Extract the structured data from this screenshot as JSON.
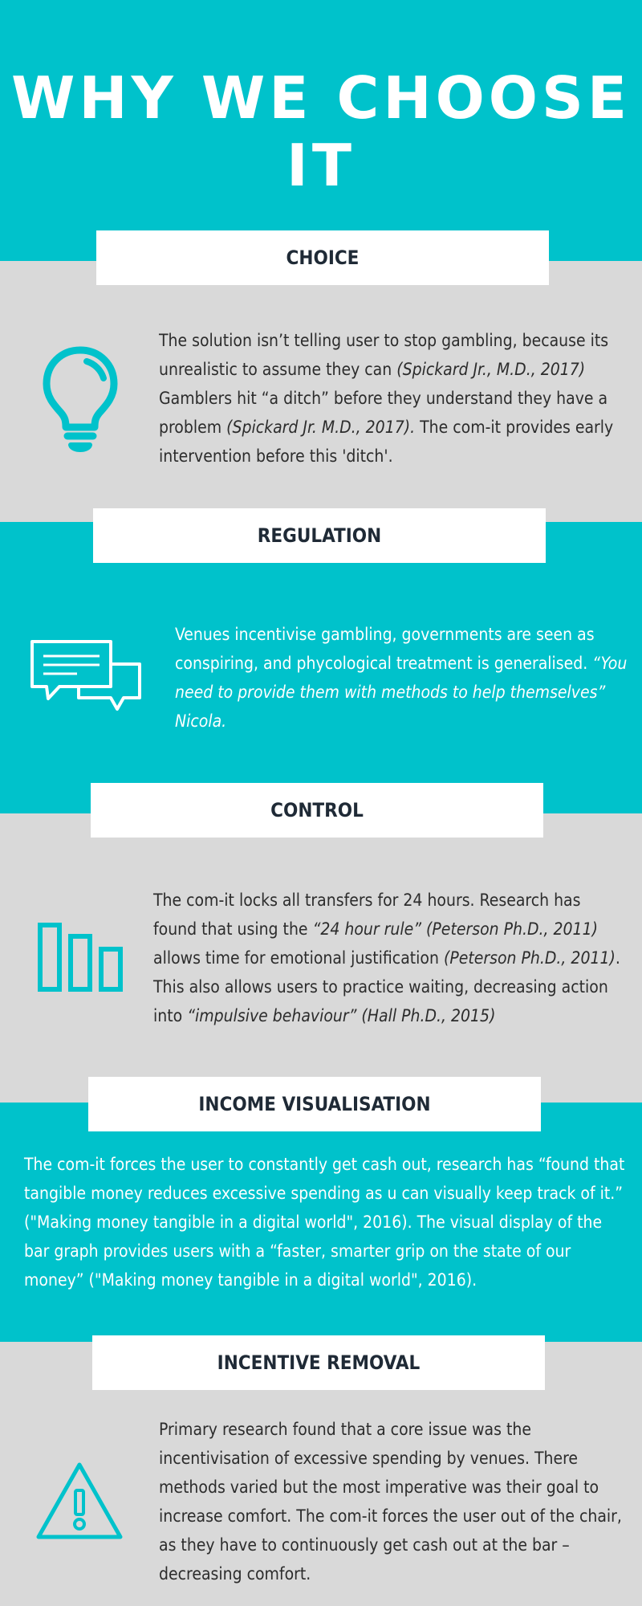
{
  "title": "WHY WE CHOOSE IT",
  "colors": {
    "teal": "#00c2cb",
    "grey": "#d9d9d9",
    "white": "#ffffff",
    "heading": "#1f2a36",
    "body_dark": "#2c2c2c"
  },
  "sections": [
    {
      "heading": "CHOICE",
      "icon": "lightbulb-icon",
      "body": [
        {
          "t": "The solution isn’t telling user to stop gambling, because its unrealistic to assume they can "
        },
        {
          "t": "(Spickard Jr., M.D., 2017)",
          "i": true
        },
        {
          "t": " Gamblers hit “a ditch” before they understand they have a problem "
        },
        {
          "t": "(Spickard Jr. M.D., 2017).",
          "i": true
        },
        {
          "t": " The com-it provides early intervention before this 'ditch'."
        }
      ]
    },
    {
      "heading": "REGULATION",
      "icon": "chat-bubbles-icon",
      "body": [
        {
          "t": "Venues incentivise gambling, governments are seen as conspiring, and phycological treatment is generalised. "
        },
        {
          "t": "“You need to provide them with methods to help themselves” Nicola.",
          "i": true
        }
      ]
    },
    {
      "heading": "CONTROL",
      "icon": "bar-chart-icon",
      "body": [
        {
          "t": "The com-it locks all transfers for 24 hours. Research has found that using the "
        },
        {
          "t": "“24 hour rule” (Peterson Ph.D., 2011)",
          "i": true
        },
        {
          "t": " allows time for emotional justification "
        },
        {
          "t": "(Peterson Ph.D., 2011)",
          "i": true
        },
        {
          "t": ". This also allows users to practice waiting, decreasing action into "
        },
        {
          "t": "“impulsive behaviour” (Hall Ph.D., 2015)",
          "i": true
        }
      ]
    },
    {
      "heading": "INCOME VISUALISATION",
      "icon": "",
      "body": [
        {
          "t": "The com-it forces the user to constantly get cash out,  research has “found that tangible money reduces excessive spending as u can visually keep track of it.” (\"Making money tangible in a digital world\", 2016). The visual display of the bar graph provides users with a “faster, smarter grip on the state of our money” (\"Making money tangible in a digital world\", 2016)."
        }
      ]
    },
    {
      "heading": "INCENTIVE REMOVAL",
      "icon": "warning-icon",
      "body": [
        {
          "t": "Primary research found that a core issue was the incentivisation of excessive spending by venues. There methods varied but the most imperative was their goal to increase comfort. The com-it forces the user out of the chair, as they have to continuously get cash out at the bar – decreasing comfort."
        }
      ]
    }
  ]
}
